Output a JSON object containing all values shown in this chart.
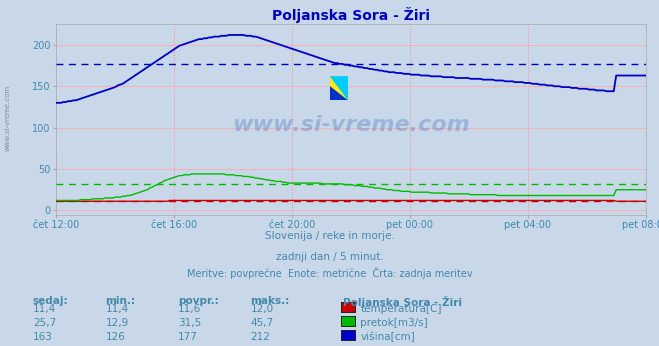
{
  "title": "Poljanska Sora - Žiri",
  "title_color": "#0000cc",
  "bg_color": "#c8d8e8",
  "plot_bg_color": "#c8d8e8",
  "subtitle1": "Slovenija / reke in morje.",
  "subtitle2": "zadnji dan / 5 minut.",
  "subtitle3": "Meritve: povprečne  Enote: metrične  Črta: zadnja meritev",
  "subtitle_color": "#4488aa",
  "watermark": "www.si-vreme.com",
  "avg_blue": 177,
  "avg_green": 31.5,
  "avg_red": 11.6,
  "ylim_min": -5,
  "ylim_max": 225,
  "yticks": [
    0,
    50,
    100,
    150,
    200
  ],
  "x_tick_labels": [
    "čet 12:00",
    "čet 16:00",
    "čet 20:00",
    "pet 00:00",
    "pet 04:00",
    "pet 08:00"
  ],
  "table_headers": [
    "sedaj:",
    "min.:",
    "povpr.:",
    "maks.:"
  ],
  "table_data": [
    [
      "11,4",
      "11,4",
      "11,6",
      "12,0"
    ],
    [
      "25,7",
      "12,9",
      "31,5",
      "45,7"
    ],
    [
      "163",
      "126",
      "177",
      "212"
    ]
  ],
  "legend_labels": [
    "temperatura[C]",
    "pretok[m3/s]",
    "višina[cm]"
  ],
  "legend_colors": [
    "#cc0000",
    "#00bb00",
    "#0000cc"
  ],
  "station_label": "Poljanska Sora - Žiri",
  "table_color": "#4488aa",
  "blue_data": [
    130,
    130,
    130,
    131,
    131,
    132,
    132,
    133,
    133,
    134,
    135,
    136,
    137,
    138,
    139,
    140,
    141,
    142,
    143,
    144,
    145,
    146,
    147,
    148,
    149,
    151,
    152,
    153,
    155,
    157,
    159,
    161,
    163,
    165,
    167,
    169,
    171,
    173,
    175,
    177,
    179,
    181,
    183,
    185,
    187,
    189,
    191,
    193,
    195,
    197,
    199,
    200,
    201,
    202,
    203,
    204,
    205,
    206,
    207,
    207,
    208,
    208,
    209,
    209,
    210,
    210,
    210,
    211,
    211,
    211,
    212,
    212,
    212,
    212,
    212,
    212,
    212,
    211,
    211,
    211,
    210,
    210,
    209,
    208,
    207,
    206,
    205,
    204,
    203,
    202,
    201,
    200,
    199,
    198,
    197,
    196,
    195,
    194,
    193,
    192,
    191,
    190,
    189,
    188,
    187,
    186,
    185,
    184,
    183,
    182,
    181,
    180,
    179,
    178,
    178,
    177,
    177,
    176,
    176,
    175,
    175,
    174,
    174,
    173,
    173,
    172,
    172,
    171,
    171,
    170,
    170,
    169,
    169,
    168,
    168,
    167,
    167,
    167,
    166,
    166,
    166,
    165,
    165,
    165,
    164,
    164,
    164,
    164,
    163,
    163,
    163,
    163,
    162,
    162,
    162,
    162,
    162,
    161,
    161,
    161,
    161,
    161,
    160,
    160,
    160,
    160,
    160,
    160,
    159,
    159,
    159,
    159,
    159,
    158,
    158,
    158,
    158,
    158,
    157,
    157,
    157,
    157,
    156,
    156,
    156,
    156,
    155,
    155,
    155,
    155,
    154,
    154,
    154,
    153,
    153,
    153,
    152,
    152,
    152,
    151,
    151,
    151,
    150,
    150,
    150,
    149,
    149,
    149,
    149,
    148,
    148,
    148,
    147,
    147,
    147,
    147,
    146,
    146,
    146,
    145,
    145,
    145,
    145,
    144,
    144,
    144,
    144,
    163,
    163,
    163,
    163,
    163,
    163,
    163,
    163,
    163,
    163,
    163,
    163,
    163
  ],
  "green_data": [
    12,
    12,
    12,
    12,
    12,
    12,
    12,
    12,
    12,
    12,
    13,
    13,
    13,
    13,
    13,
    14,
    14,
    14,
    14,
    14,
    15,
    15,
    15,
    15,
    16,
    16,
    16,
    17,
    17,
    18,
    18,
    19,
    20,
    21,
    22,
    23,
    24,
    25,
    27,
    28,
    30,
    31,
    33,
    34,
    36,
    37,
    38,
    39,
    40,
    41,
    42,
    42,
    43,
    43,
    43,
    44,
    44,
    44,
    44,
    44,
    44,
    44,
    44,
    44,
    44,
    44,
    44,
    44,
    44,
    43,
    43,
    43,
    43,
    42,
    42,
    42,
    41,
    41,
    41,
    40,
    40,
    39,
    39,
    38,
    38,
    37,
    37,
    36,
    36,
    35,
    35,
    35,
    34,
    34,
    33,
    33,
    33,
    33,
    33,
    33,
    33,
    33,
    33,
    33,
    33,
    33,
    33,
    33,
    32,
    32,
    32,
    32,
    32,
    32,
    32,
    32,
    32,
    31,
    31,
    31,
    31,
    30,
    30,
    30,
    29,
    29,
    29,
    28,
    28,
    27,
    27,
    27,
    26,
    26,
    25,
    25,
    25,
    24,
    24,
    24,
    23,
    23,
    23,
    23,
    22,
    22,
    22,
    22,
    22,
    22,
    22,
    22,
    21,
    21,
    21,
    21,
    21,
    21,
    21,
    20,
    20,
    20,
    20,
    20,
    20,
    20,
    20,
    20,
    19,
    19,
    19,
    19,
    19,
    19,
    19,
    19,
    19,
    19,
    19,
    18,
    18,
    18,
    18,
    18,
    18,
    18,
    18,
    18,
    18,
    18,
    18,
    18,
    18,
    18,
    18,
    18,
    18,
    18,
    18,
    18,
    18,
    18,
    18,
    18,
    18,
    18,
    18,
    18,
    18,
    18,
    18,
    18,
    18,
    18,
    18,
    18,
    18,
    18,
    18,
    18,
    18,
    18,
    18,
    18,
    18,
    18,
    18,
    25,
    25,
    25,
    25,
    25,
    25,
    25,
    25,
    25,
    25,
    25,
    25,
    25
  ],
  "red_data": [
    11,
    11,
    11,
    11,
    11,
    11,
    11,
    11,
    11,
    11,
    11,
    11,
    11,
    11,
    11,
    11,
    11,
    11,
    11,
    11,
    11,
    11,
    11,
    11,
    11,
    11,
    11,
    11,
    11,
    11,
    11,
    11,
    11,
    11,
    11,
    11,
    11,
    11,
    11,
    11,
    11,
    11,
    11,
    11,
    11,
    11,
    12,
    12,
    12,
    12,
    12,
    12,
    12,
    12,
    12,
    12,
    12,
    12,
    12,
    12,
    12,
    12,
    12,
    12,
    12,
    12,
    12,
    12,
    12,
    12,
    12,
    12,
    12,
    12,
    12,
    12,
    12,
    12,
    12,
    12,
    12,
    12,
    12,
    12,
    12,
    12,
    12,
    12,
    12,
    12,
    12,
    12,
    12,
    12,
    12,
    12,
    12,
    12,
    12,
    12,
    12,
    12,
    12,
    12,
    12,
    12,
    12,
    12,
    12,
    12,
    12,
    12,
    12,
    12,
    12,
    12,
    12,
    12,
    12,
    12,
    12,
    12,
    12,
    12,
    12,
    12,
    12,
    12,
    12,
    12,
    12,
    12,
    12,
    12,
    12,
    12,
    12,
    12,
    12,
    12,
    12,
    12,
    12,
    12,
    12,
    12,
    12,
    12,
    12,
    12,
    12,
    12,
    12,
    12,
    12,
    12,
    12,
    12,
    12,
    12,
    12,
    12,
    12,
    12,
    12,
    12,
    12,
    12,
    12,
    12,
    12,
    12,
    12,
    12,
    12,
    12,
    12,
    12,
    12,
    12,
    12,
    12,
    12,
    12,
    12,
    12,
    12,
    12,
    12,
    12,
    12,
    12,
    12,
    12,
    12,
    12,
    12,
    12,
    12,
    12,
    12,
    12,
    12,
    12,
    12,
    12,
    12,
    12,
    12,
    12,
    12,
    12,
    12,
    12,
    12,
    12,
    12,
    12,
    12,
    12,
    12,
    12,
    12,
    12,
    12,
    12,
    12,
    11,
    11,
    11,
    11,
    11,
    11,
    11,
    11,
    11,
    11,
    11,
    11,
    11
  ]
}
